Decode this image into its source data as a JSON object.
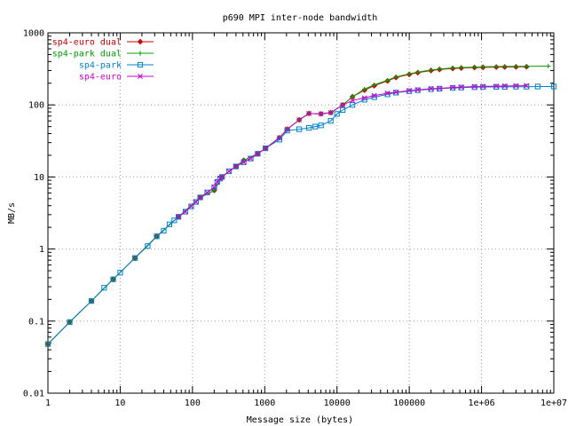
{
  "chart_data": {
    "type": "line",
    "title": "p690 MPI inter-node bandwidth",
    "xlabel": "Message size (bytes)",
    "ylabel": "MB/s",
    "xscale": "log",
    "yscale": "log",
    "xlim": [
      1,
      10000000
    ],
    "ylim": [
      0.01,
      1000
    ],
    "grid": true,
    "legend_position": "top-left",
    "x_ticks": [
      {
        "value": 1,
        "label": "1"
      },
      {
        "value": 10,
        "label": "10"
      },
      {
        "value": 100,
        "label": "100"
      },
      {
        "value": 1000,
        "label": "1000"
      },
      {
        "value": 10000,
        "label": "10000"
      },
      {
        "value": 100000,
        "label": "100000"
      },
      {
        "value": 1000000,
        "label": "1e+06"
      },
      {
        "value": 10000000,
        "label": "1e+07"
      }
    ],
    "y_ticks": [
      {
        "value": 0.01,
        "label": "0.01"
      },
      {
        "value": 0.1,
        "label": "0.1"
      },
      {
        "value": 1,
        "label": "1"
      },
      {
        "value": 10,
        "label": "10"
      },
      {
        "value": 100,
        "label": "100"
      },
      {
        "value": 1000,
        "label": "1000"
      }
    ],
    "series": [
      {
        "name": "sp4-euro dual",
        "color": "#cc0000",
        "marker": "diamond",
        "x": [
          1,
          2,
          4,
          8,
          16,
          32,
          64,
          128,
          200,
          256,
          400,
          512,
          800,
          1024,
          1600,
          2048,
          3000,
          4096,
          6000,
          8192,
          12000,
          16384,
          24000,
          32768,
          50000,
          65536,
          100000,
          131072,
          200000,
          262144,
          400000,
          524288,
          800000,
          1048576,
          1600000,
          2097152,
          3000000,
          4194304
        ],
        "y": [
          0.048,
          0.097,
          0.19,
          0.38,
          0.75,
          1.5,
          2.8,
          5.2,
          6.5,
          10,
          14,
          17,
          21,
          25,
          35,
          46,
          62,
          76,
          75,
          78,
          100,
          130,
          160,
          185,
          215,
          240,
          265,
          280,
          300,
          310,
          320,
          325,
          330,
          332,
          335,
          336,
          337,
          338
        ]
      },
      {
        "name": "sp4-park dual",
        "color": "#00a000",
        "marker": "plus",
        "x": [
          1,
          2,
          4,
          8,
          16,
          32,
          64,
          128,
          200,
          256,
          400,
          512,
          800,
          1024,
          1600,
          2048,
          3000,
          4096,
          6000,
          8192,
          12000,
          16384,
          24000,
          32768,
          50000,
          65536,
          100000,
          131072,
          200000,
          262144,
          400000,
          524288,
          800000,
          1048576,
          1600000,
          2097152,
          3000000,
          4194304,
          8388608
        ],
        "y": [
          0.048,
          0.097,
          0.19,
          0.38,
          0.75,
          1.5,
          2.8,
          5.2,
          6.5,
          10,
          14,
          17,
          21,
          25,
          35,
          46,
          62,
          76,
          75,
          78,
          100,
          130,
          165,
          190,
          220,
          245,
          270,
          285,
          305,
          315,
          325,
          330,
          335,
          338,
          340,
          341,
          342,
          343,
          345
        ]
      },
      {
        "name": "sp4-park",
        "color": "#0080cc",
        "marker": "square",
        "x": [
          1,
          2,
          4,
          6,
          8,
          10,
          16,
          24,
          32,
          40,
          48,
          56,
          64,
          80,
          96,
          112,
          128,
          160,
          200,
          220,
          240,
          256,
          320,
          400,
          512,
          640,
          800,
          1024,
          1600,
          2048,
          3000,
          4096,
          5000,
          6000,
          8192,
          10000,
          12000,
          16384,
          24000,
          32768,
          50000,
          65536,
          100000,
          131072,
          200000,
          262144,
          400000,
          524288,
          800000,
          1048576,
          1600000,
          2097152,
          3000000,
          4194304,
          6000000,
          10000000
        ],
        "y": [
          0.048,
          0.097,
          0.19,
          0.29,
          0.38,
          0.47,
          0.75,
          1.1,
          1.5,
          1.8,
          2.2,
          2.5,
          2.8,
          3.3,
          3.9,
          4.5,
          5.2,
          6.1,
          7.2,
          8.5,
          9.5,
          10,
          12,
          14,
          16,
          18,
          21,
          25,
          33,
          44,
          46,
          48,
          50,
          52,
          60,
          75,
          85,
          100,
          118,
          128,
          140,
          148,
          155,
          160,
          165,
          168,
          172,
          174,
          176,
          177,
          178,
          178,
          179,
          179,
          180,
          180
        ]
      },
      {
        "name": "sp4-euro",
        "color": "#cc00cc",
        "marker": "cross",
        "x": [
          64,
          80,
          96,
          112,
          128,
          160,
          200,
          220,
          240,
          256,
          320,
          400,
          512,
          640,
          800,
          1024,
          1600,
          2048,
          3000,
          4096,
          6000,
          8192,
          12000,
          16384,
          24000,
          32768,
          50000,
          65536,
          100000,
          131072,
          200000,
          262144,
          400000,
          524288,
          800000,
          1048576,
          1600000,
          2097152,
          3000000,
          4194304
        ],
        "y": [
          2.8,
          3.3,
          3.9,
          4.5,
          5.2,
          6.1,
          7.2,
          8.5,
          9.5,
          10,
          12,
          14,
          16,
          18,
          21,
          25,
          35,
          46,
          62,
          76,
          75,
          78,
          100,
          115,
          125,
          135,
          145,
          150,
          158,
          162,
          168,
          170,
          175,
          177,
          180,
          181,
          182,
          183,
          184,
          185
        ]
      }
    ]
  }
}
